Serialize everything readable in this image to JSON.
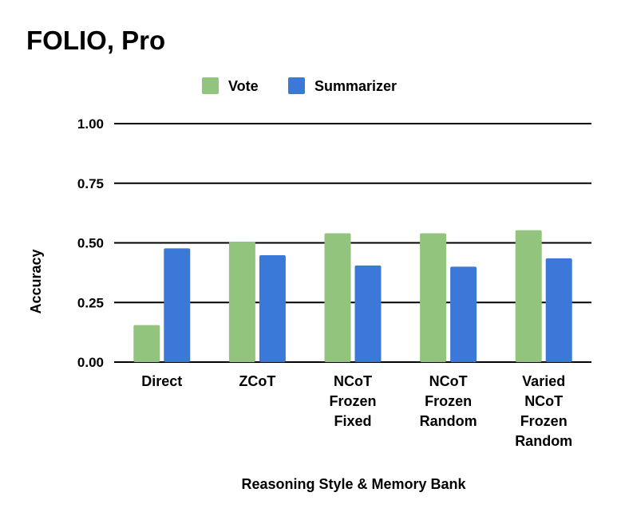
{
  "chart_data": {
    "type": "bar",
    "title": "FOLIO, Pro",
    "xlabel": "Reasoning Style & Memory Bank",
    "ylabel": "Accuracy",
    "ylim": [
      0,
      1
    ],
    "yticks": [
      "1.00",
      "0.75",
      "0.50",
      "0.25",
      "0.00"
    ],
    "ytick_values": [
      1.0,
      0.75,
      0.5,
      0.25,
      0.0
    ],
    "grid": true,
    "legend_position": "top",
    "categories": [
      [
        "Direct"
      ],
      [
        "ZCoT"
      ],
      [
        "NCoT",
        "Frozen",
        "Fixed"
      ],
      [
        "NCoT",
        "Frozen",
        "Random"
      ],
      [
        "Varied",
        "NCoT",
        "Frozen",
        "Random"
      ]
    ],
    "series": [
      {
        "name": "Vote",
        "color": "#93c47d",
        "values": [
          0.155,
          0.505,
          0.54,
          0.54,
          0.553
        ]
      },
      {
        "name": "Summarizer",
        "color": "#3c78d8",
        "values": [
          0.477,
          0.448,
          0.405,
          0.4,
          0.435
        ]
      }
    ]
  }
}
